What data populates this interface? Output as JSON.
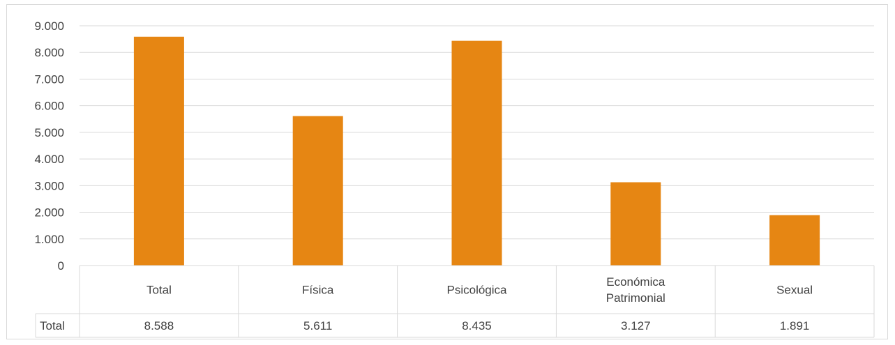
{
  "chart_data": {
    "type": "bar",
    "categories": [
      "Total",
      "Física",
      "Psicológica",
      "Económica\nPatrimonial",
      "Sexual"
    ],
    "series": [
      {
        "name": "Total",
        "values": [
          8588,
          5611,
          8435,
          3127,
          1891
        ],
        "color": "#E68613"
      }
    ],
    "display_values": [
      "8.588",
      "5.611",
      "8.435",
      "3.127",
      "1.891"
    ],
    "ylim": [
      0,
      9000
    ],
    "y_ticks": [
      0,
      1000,
      2000,
      3000,
      4000,
      5000,
      6000,
      7000,
      8000,
      9000
    ],
    "y_tick_labels": [
      "0",
      "1.000",
      "2.000",
      "3.000",
      "4.000",
      "5.000",
      "6.000",
      "7.000",
      "8.000",
      "9.000"
    ],
    "grid": true,
    "data_table": true,
    "title": "",
    "xlabel": "",
    "ylabel": ""
  },
  "colors": {
    "bar": "#E68613",
    "grid": "#d9d9d9",
    "text": "#404040"
  }
}
